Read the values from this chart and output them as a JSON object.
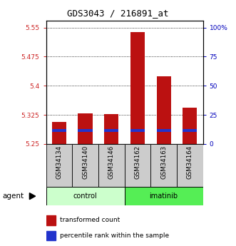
{
  "title": "GDS3043 / 216891_at",
  "samples": [
    "GSM34134",
    "GSM34140",
    "GSM34146",
    "GSM34162",
    "GSM34163",
    "GSM34164"
  ],
  "groups": [
    "control",
    "control",
    "control",
    "imatinib",
    "imatinib",
    "imatinib"
  ],
  "red_top": [
    5.307,
    5.328,
    5.326,
    5.538,
    5.424,
    5.343
  ],
  "blue_level": [
    5.284,
    5.284,
    5.284,
    5.284,
    5.284,
    5.284
  ],
  "bar_bottom": 5.25,
  "ylim_min": 5.25,
  "ylim_max": 5.567,
  "yticks": [
    5.25,
    5.325,
    5.4,
    5.475,
    5.55
  ],
  "ytick_labels_left": [
    "5.25",
    "5.325",
    "5.4",
    "5.475",
    "5.55"
  ],
  "ytick_labels_right": [
    "0",
    "25",
    "50",
    "75",
    "100%"
  ],
  "red_color": "#bb1111",
  "blue_color": "#2233cc",
  "control_fill": "#ccffcc",
  "imatinib_fill": "#55ee55",
  "left_tick_color": "#cc2222",
  "right_tick_color": "#0000bb",
  "bar_width": 0.55,
  "blue_thickness": 0.007,
  "agent_label": "agent",
  "legend_red": "transformed count",
  "legend_blue": "percentile rank within the sample"
}
